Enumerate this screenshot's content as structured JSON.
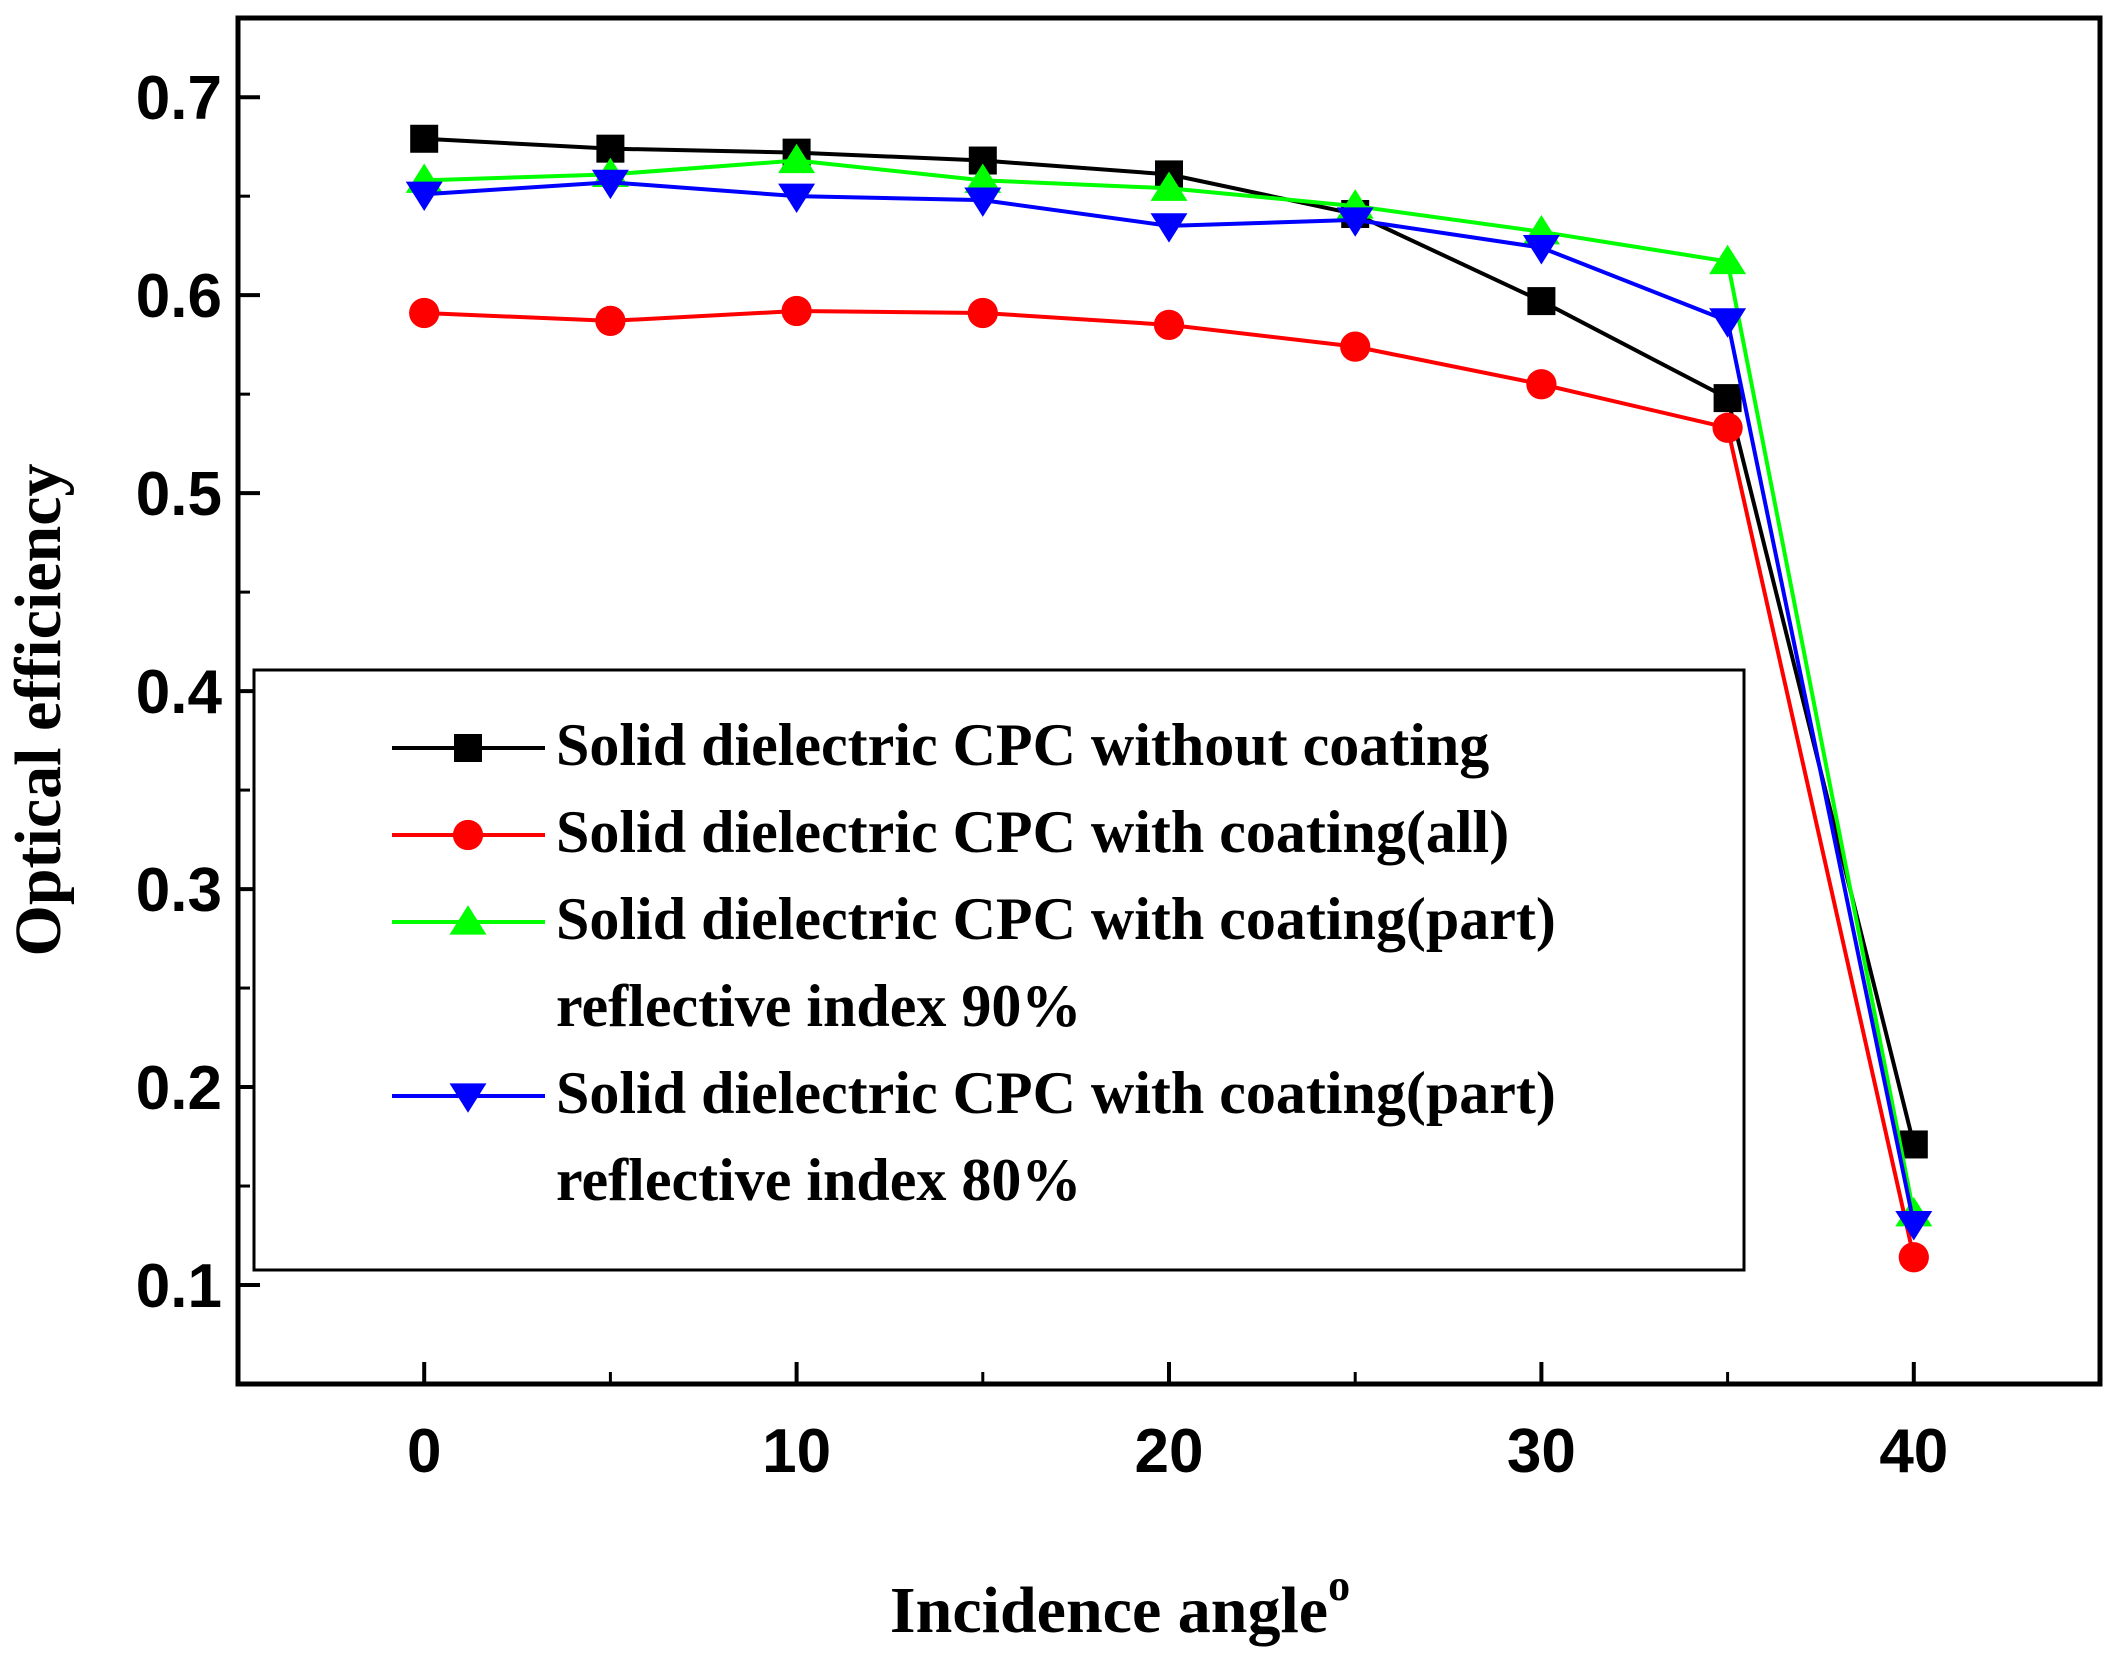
{
  "chart_data": {
    "type": "line",
    "title": "",
    "xlabel": "Incidence angle",
    "xlabel_superscript": "o",
    "ylabel": "Optical efficiency",
    "xlim": [
      -5,
      45
    ],
    "ylim": [
      0.05,
      0.74
    ],
    "xticks": [
      0,
      10,
      20,
      30,
      40
    ],
    "yticks": [
      0.1,
      0.2,
      0.3,
      0.4,
      0.5,
      0.6,
      0.7
    ],
    "ytick_labels": [
      "0.1",
      "0.2",
      "0.3",
      "0.4",
      "0.5",
      "0.6",
      "0.7"
    ],
    "xtick_labels": [
      "0",
      "10",
      "20",
      "30",
      "40"
    ],
    "grid": false,
    "legend_position": "center-left",
    "x": [
      0,
      5,
      10,
      15,
      20,
      25,
      30,
      35,
      40
    ],
    "series": [
      {
        "name": "Solid dielectric CPC without coating",
        "label_lines": [
          "Solid dielectric CPC without coating"
        ],
        "color": "#000000",
        "marker": "square",
        "values": [
          0.679,
          0.674,
          0.672,
          0.668,
          0.661,
          0.641,
          0.597,
          0.548,
          0.171
        ]
      },
      {
        "name": "Solid dielectric CPC with coating(all)",
        "label_lines": [
          "Solid dielectric CPC with coating(all)"
        ],
        "color": "#ff0000",
        "marker": "circle",
        "values": [
          0.591,
          0.587,
          0.592,
          0.591,
          0.585,
          0.574,
          0.555,
          0.533,
          0.114
        ]
      },
      {
        "name": "Solid dielectric CPC with coating(part) reflective index 90%",
        "label_lines": [
          "Solid dielectric CPC with coating(part)",
          " reflective index 90%"
        ],
        "color": "#00ff00",
        "marker": "triangle-up",
        "values": [
          0.658,
          0.661,
          0.668,
          0.658,
          0.654,
          0.645,
          0.632,
          0.617,
          0.136
        ]
      },
      {
        "name": "Solid dielectric CPC with coating(part) reflective index 80%",
        "label_lines": [
          "Solid dielectric CPC with coating(part)",
          "reflective index 80%"
        ],
        "color": "#0000ff",
        "marker": "triangle-down",
        "values": [
          0.651,
          0.657,
          0.65,
          0.648,
          0.635,
          0.638,
          0.624,
          0.587,
          0.131
        ]
      }
    ]
  }
}
